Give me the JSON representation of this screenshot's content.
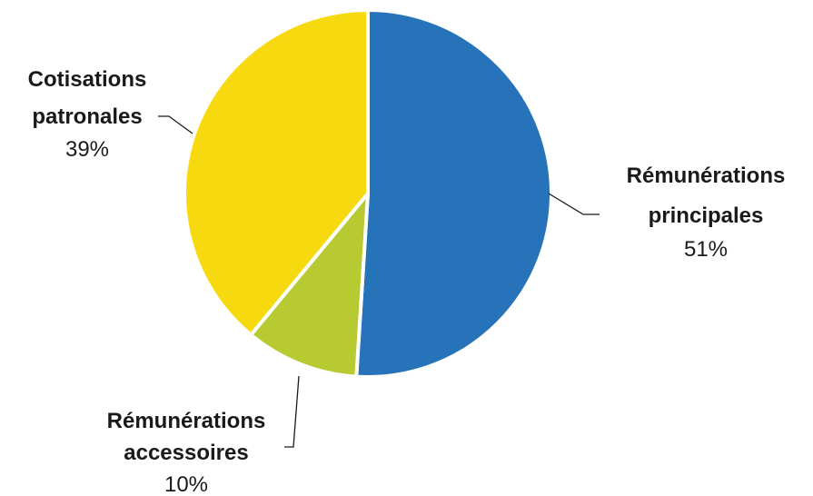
{
  "chart_data": {
    "type": "pie",
    "title": "",
    "slices": [
      {
        "label_lines": [
          "Rémunérations",
          "principales"
        ],
        "value": 51,
        "value_label": "51%",
        "color": "#2773BA"
      },
      {
        "label_lines": [
          "Rémunérations",
          "accessoires"
        ],
        "value": 10,
        "value_label": "10%",
        "color": "#B7CA32"
      },
      {
        "label_lines": [
          "Cotisations",
          "patronales"
        ],
        "value": 39,
        "value_label": "39%",
        "color": "#F7D90F"
      }
    ],
    "start_angle_deg": 0,
    "direction": "clockwise",
    "legend": "none"
  }
}
